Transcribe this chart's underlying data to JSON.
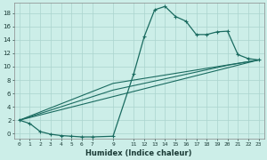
{
  "xlabel": "Humidex (Indice chaleur)",
  "bg_color": "#cceee8",
  "grid_color": "#aad4ce",
  "line_color": "#1a6b60",
  "xlim": [
    -0.5,
    23.5
  ],
  "ylim": [
    -0.8,
    19.5
  ],
  "yticks": [
    0,
    2,
    4,
    6,
    8,
    10,
    12,
    14,
    16,
    18
  ],
  "xticks": [
    0,
    1,
    2,
    3,
    4,
    5,
    6,
    7,
    9,
    11,
    12,
    13,
    14,
    15,
    16,
    17,
    18,
    19,
    20,
    21,
    22,
    23
  ],
  "line1_x": [
    0,
    1,
    2,
    3,
    4,
    5,
    6,
    7,
    9,
    11,
    12,
    13,
    14,
    15,
    16,
    17,
    18,
    19,
    20,
    21,
    22,
    23
  ],
  "line1_y": [
    2.0,
    1.5,
    0.3,
    -0.1,
    -0.3,
    -0.4,
    -0.5,
    -0.5,
    -0.4,
    9.0,
    14.5,
    18.5,
    19.0,
    17.5,
    16.8,
    14.8,
    14.8,
    15.2,
    15.3,
    11.8,
    11.2,
    11.0
  ],
  "line2_x": [
    0,
    23
  ],
  "line2_y": [
    2.0,
    11.0
  ],
  "line3_x": [
    0,
    9,
    23
  ],
  "line3_y": [
    2.0,
    7.5,
    11.0
  ],
  "line4_x": [
    0,
    9,
    20,
    23
  ],
  "line4_y": [
    2.0,
    6.5,
    10.2,
    11.0
  ],
  "figwidth": 3.0,
  "figheight": 1.8,
  "dpi": 100
}
